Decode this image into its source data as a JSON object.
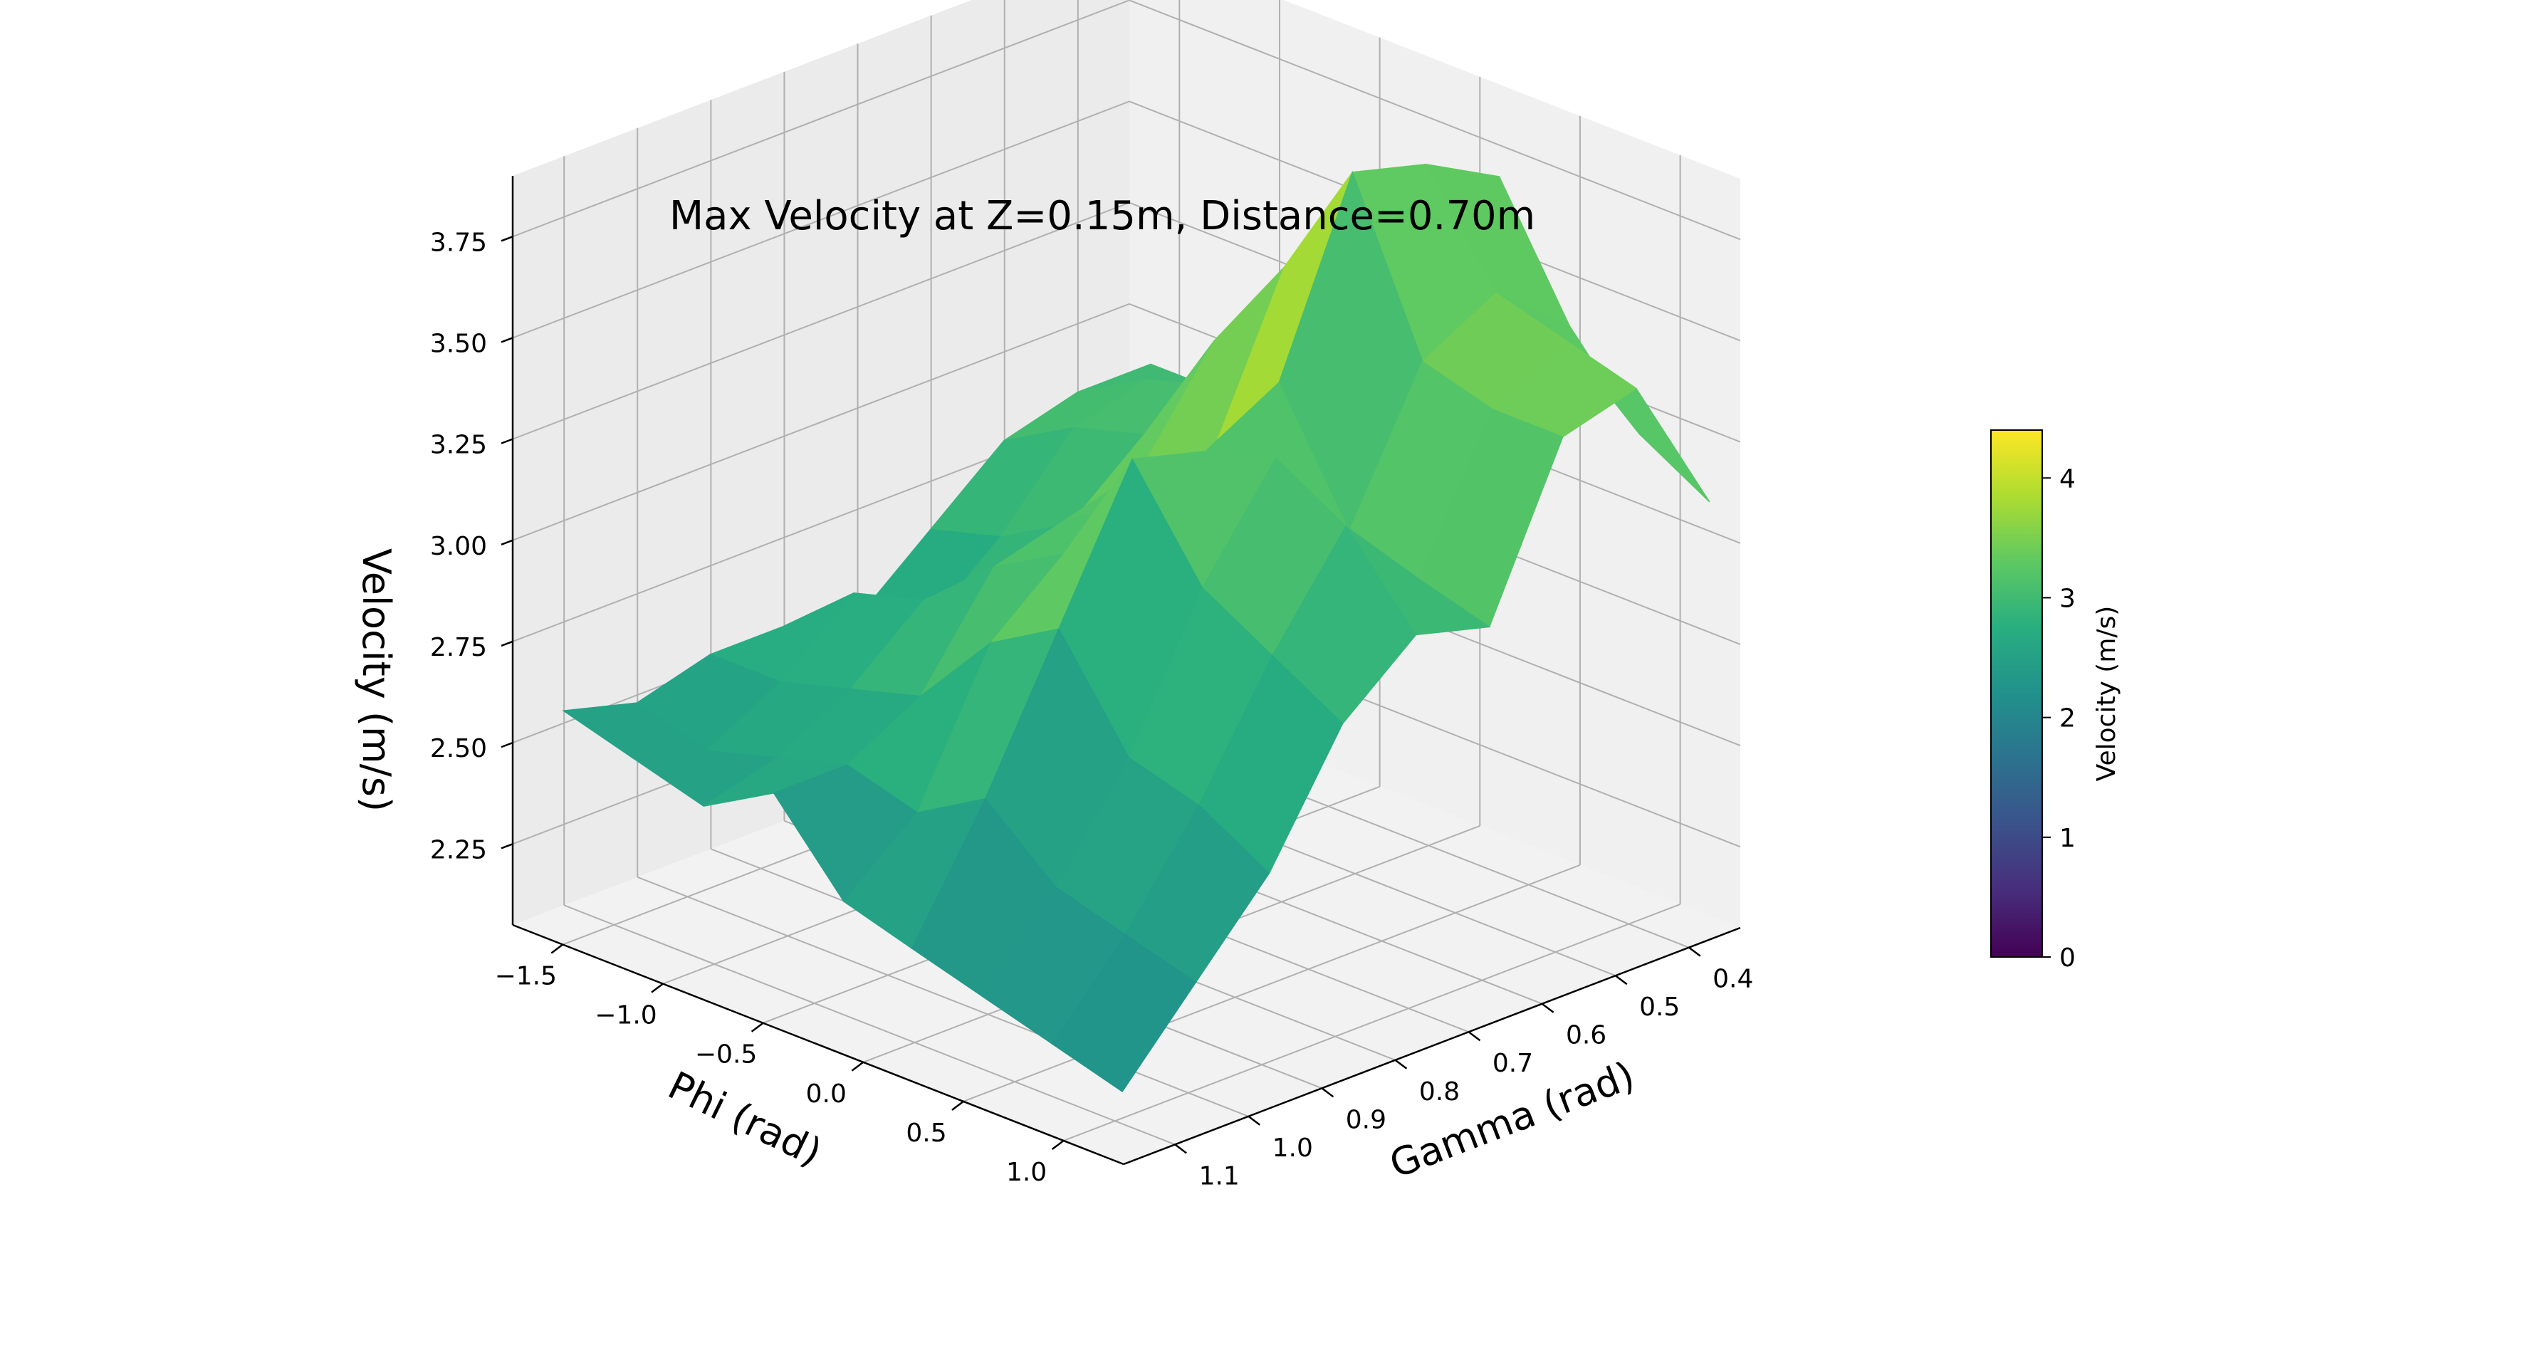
{
  "chart_data": {
    "type": "surface",
    "title": "Max Velocity at Z=0.15m, Distance=0.70m",
    "xlabel": "Phi (rad)",
    "ylabel": "Gamma (rad)",
    "zlabel": "Velocity (m/s)",
    "colorbar_label": "Velocity (m/s)",
    "colormap": "viridis",
    "clim": [
      0,
      4.4
    ],
    "xlim": [
      -1.75,
      1.3
    ],
    "ylim": [
      0.33,
      1.17
    ],
    "zlim": [
      2.05,
      3.9
    ],
    "x_ticks": [
      "−1.5",
      "−1.0",
      "−0.5",
      "0.0",
      "0.5",
      "1.0"
    ],
    "x_tick_values": [
      -1.5,
      -1.0,
      -0.5,
      0.0,
      0.5,
      1.0
    ],
    "y_ticks": [
      "0.4",
      "0.5",
      "0.6",
      "0.7",
      "0.8",
      "0.9",
      "1.0",
      "1.1"
    ],
    "y_tick_values": [
      0.4,
      0.5,
      0.6,
      0.7,
      0.8,
      0.9,
      1.0,
      1.1
    ],
    "z_ticks": [
      "2.25",
      "2.50",
      "2.75",
      "3.00",
      "3.25",
      "3.50",
      "3.75"
    ],
    "z_tick_values": [
      2.25,
      2.5,
      2.75,
      3.0,
      3.25,
      3.5,
      3.75
    ],
    "colorbar_ticks": [
      "0",
      "1",
      "2",
      "3",
      "4"
    ],
    "colorbar_tick_values": [
      0,
      1,
      2,
      3,
      4
    ],
    "grid": true,
    "phi": [
      -1.57,
      -1.22,
      -0.87,
      -0.52,
      -0.17,
      0.17,
      0.52,
      0.87,
      1.22
    ],
    "gamma": [
      0.35,
      0.45,
      0.55,
      0.65,
      0.75,
      0.85,
      0.95,
      1.05,
      1.15
    ],
    "z": [
      [
        2.9,
        2.9,
        2.85,
        2.7,
        2.55,
        2.6,
        2.6,
        2.55,
        2.6
      ],
      [
        2.9,
        3.0,
        2.95,
        2.75,
        2.6,
        2.75,
        2.6,
        2.5,
        2.55
      ],
      [
        2.9,
        3.05,
        3.0,
        2.85,
        2.75,
        2.8,
        2.65,
        2.55,
        2.5
      ],
      [
        2.95,
        3.15,
        3.3,
        3.05,
        3.0,
        2.95,
        2.7,
        2.6,
        2.6
      ],
      [
        3.25,
        3.6,
        3.55,
        3.15,
        3.1,
        3.05,
        2.9,
        2.55,
        2.4
      ],
      [
        3.7,
        3.8,
        3.85,
        3.4,
        3.3,
        3.35,
        3.0,
        2.65,
        2.35
      ],
      [
        3.4,
        3.55,
        3.45,
        3.1,
        3.35,
        3.1,
        2.75,
        2.5,
        2.3
      ],
      [
        3.2,
        3.5,
        3.4,
        3.05,
        3.25,
        3.0,
        2.7,
        2.45,
        2.25
      ],
      [
        3.1,
        3.45,
        3.4,
        3.0,
        3.05,
        2.9,
        2.6,
        2.4,
        2.2
      ]
    ]
  }
}
